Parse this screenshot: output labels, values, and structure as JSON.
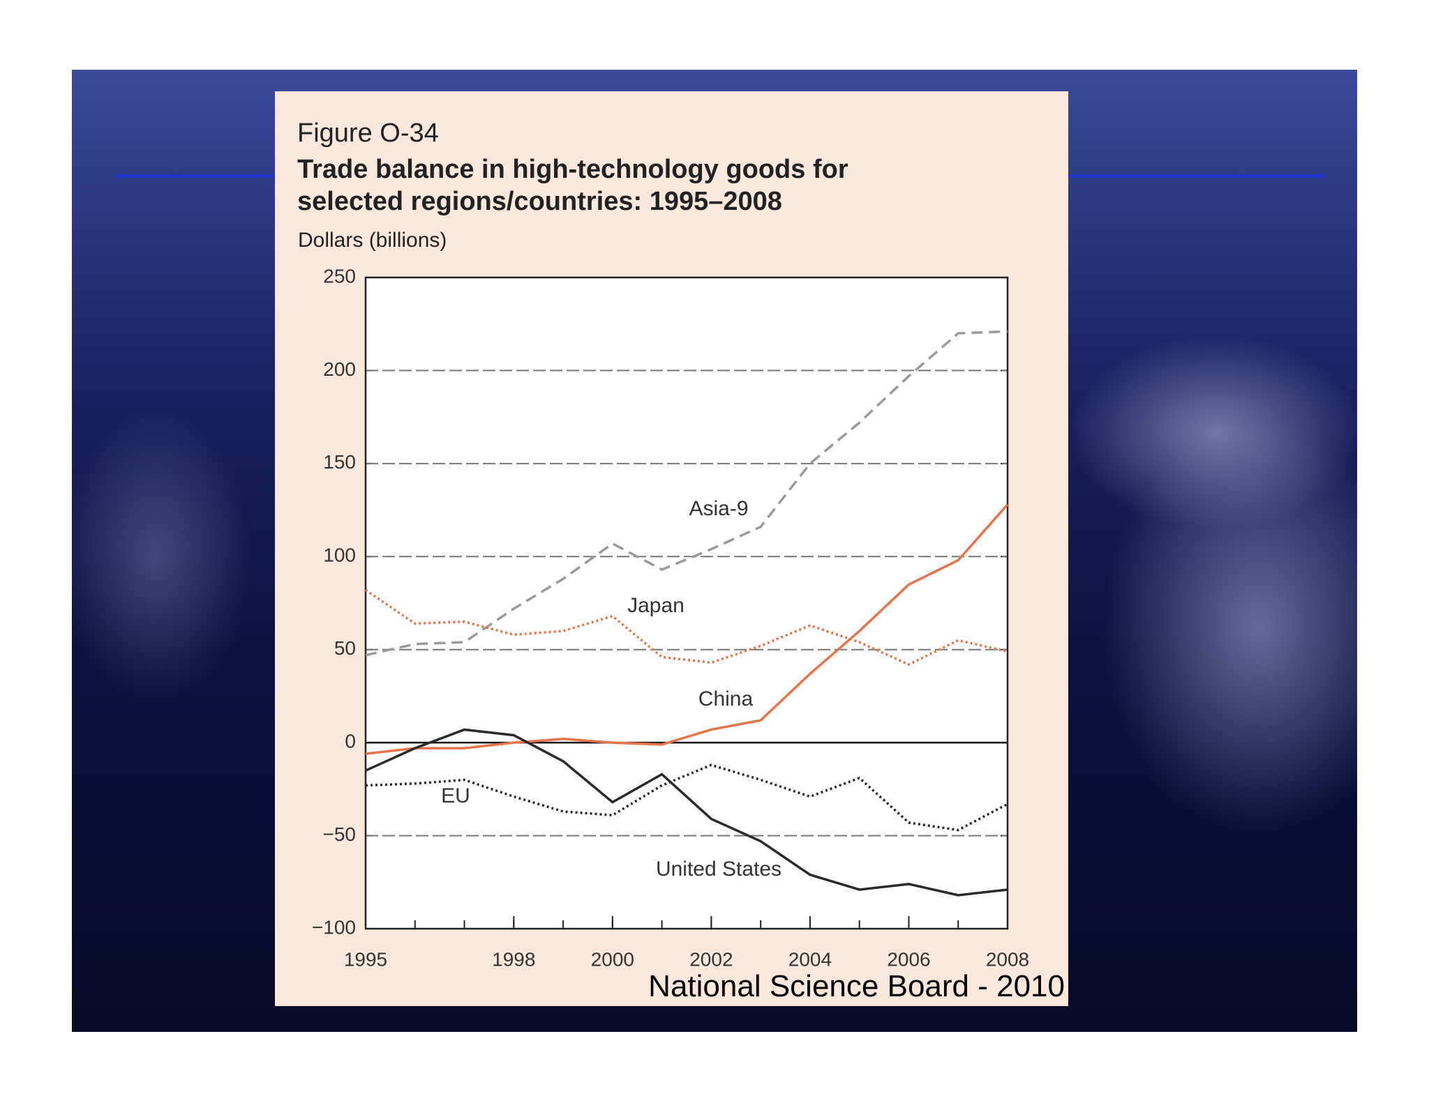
{
  "chart_data": {
    "type": "line",
    "figure_label": "Figure O-34",
    "title": "Trade balance in high-technology goods for selected regions/countries: 1995–2008",
    "y_label": "Dollars (billions)",
    "source": "National Science Board - 2010",
    "x": [
      1995,
      1996,
      1997,
      1998,
      1999,
      2000,
      2001,
      2002,
      2003,
      2004,
      2005,
      2006,
      2007,
      2008
    ],
    "xlim": [
      1995,
      2008
    ],
    "xticks": [
      1995,
      1998,
      2000,
      2002,
      2004,
      2006,
      2008
    ],
    "ylim": [
      -100,
      250
    ],
    "yticks": [
      {
        "value": -100,
        "label": "−100"
      },
      {
        "value": -50,
        "label": "−50"
      },
      0,
      50,
      100,
      150,
      200,
      250
    ],
    "grid": true,
    "series": [
      {
        "name": "Asia-9",
        "color": "#9a9a9a",
        "line_style": "dashed",
        "values": [
          47,
          53,
          54,
          72,
          88,
          107,
          93,
          104,
          116,
          150,
          172,
          197,
          220,
          221
        ]
      },
      {
        "name": "Japan",
        "color": "#e8744a",
        "line_style": "dotted",
        "values": [
          82,
          64,
          65,
          58,
          60,
          68,
          46,
          43,
          52,
          63,
          54,
          42,
          55,
          49
        ]
      },
      {
        "name": "China",
        "color": "#e8744a",
        "line_style": "solid",
        "values": [
          -6,
          -3,
          -3,
          0,
          2,
          0,
          -1,
          7,
          12,
          37,
          60,
          85,
          98,
          128
        ]
      },
      {
        "name": "EU",
        "color": "#2a2a2a",
        "line_style": "dotted",
        "values": [
          -23,
          -22,
          -20,
          -29,
          -37,
          -39,
          -23,
          -12,
          -20,
          -29,
          -19,
          -43,
          -47,
          -33
        ]
      },
      {
        "name": "United States",
        "color": "#2a2a2a",
        "line_style": "solid",
        "values": [
          -15,
          -3,
          7,
          4,
          -10,
          -32,
          -17,
          -41,
          -53,
          -71,
          -79,
          -76,
          -82,
          -79
        ]
      }
    ]
  }
}
